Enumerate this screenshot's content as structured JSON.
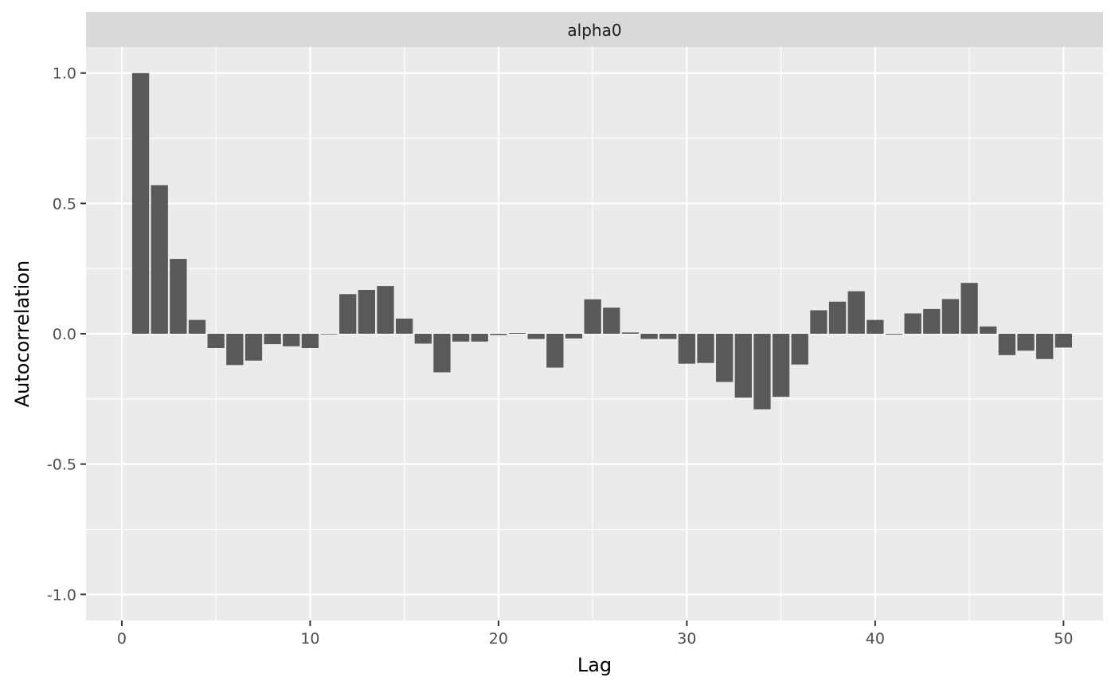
{
  "chart_data": {
    "type": "bar",
    "facet_label": "alpha0",
    "xlabel": "Lag",
    "ylabel": "Autocorrelation",
    "xlim": [
      -1.9,
      52.1
    ],
    "ylim": [
      -1.1,
      1.1
    ],
    "x_ticks": [
      0,
      10,
      20,
      30,
      40,
      50
    ],
    "x_tick_labels": [
      "0",
      "10",
      "20",
      "30",
      "40",
      "50"
    ],
    "y_ticks": [
      1.0,
      0.5,
      0.0,
      -0.5,
      -1.0
    ],
    "y_tick_labels": [
      "1.0",
      "0.5",
      "0.0",
      "-0.5",
      "-1.0"
    ],
    "grid": true,
    "bar_color": "#595959",
    "panel_color": "#ebebeb",
    "strip_color": "#d9d9d9",
    "x": [
      1,
      2,
      3,
      4,
      5,
      6,
      7,
      8,
      9,
      10,
      11,
      12,
      13,
      14,
      15,
      16,
      17,
      18,
      19,
      20,
      21,
      22,
      23,
      24,
      25,
      26,
      27,
      28,
      29,
      30,
      31,
      32,
      33,
      34,
      35,
      36,
      37,
      38,
      39,
      40,
      41,
      42,
      43,
      44,
      45,
      46,
      47,
      48,
      49,
      50
    ],
    "values": [
      1.0,
      0.57,
      0.287,
      0.053,
      -0.055,
      -0.12,
      -0.103,
      -0.04,
      -0.048,
      -0.055,
      0.0,
      0.152,
      0.168,
      0.183,
      0.058,
      -0.038,
      -0.148,
      -0.03,
      -0.03,
      -0.005,
      0.003,
      -0.02,
      -0.13,
      -0.018,
      0.132,
      0.1,
      0.005,
      -0.02,
      -0.02,
      -0.115,
      -0.112,
      -0.185,
      -0.245,
      -0.29,
      -0.242,
      -0.118,
      0.09,
      0.123,
      0.163,
      0.053,
      -0.003,
      0.078,
      0.095,
      0.133,
      0.195,
      0.028,
      -0.082,
      -0.065,
      -0.097,
      -0.053
    ]
  }
}
